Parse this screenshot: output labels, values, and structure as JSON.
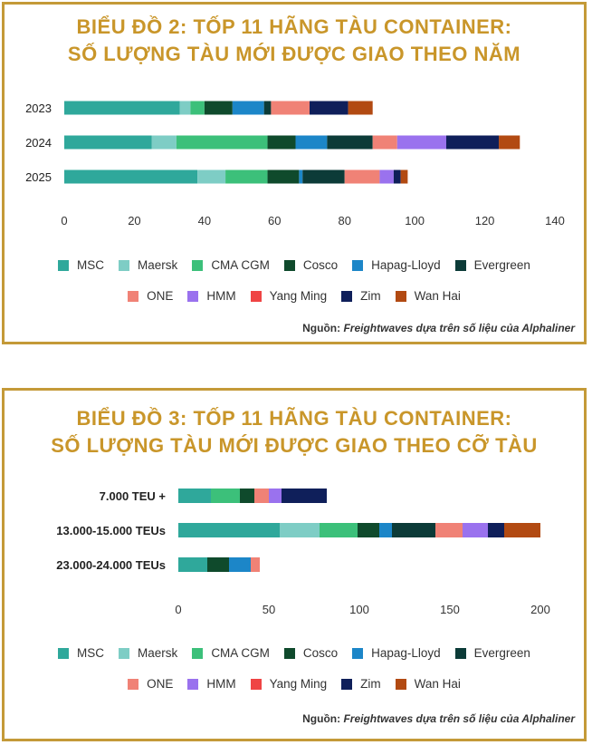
{
  "charts": [
    {
      "title_line1": "BIỂU ĐỒ 2: TỐP 11 HÃNG TÀU CONTAINER:",
      "title_line2": "SỐ LƯỢNG TÀU MỚI ĐƯỢC GIAO THEO NĂM",
      "source_prefix": "Nguồn:",
      "source_text": "Freightwaves dựa trên số liệu của Alphaliner"
    },
    {
      "title_line1": "BIỂU ĐỒ 3: TỐP 11 HÃNG TÀU CONTAINER:",
      "title_line2": "SỐ LƯỢNG TÀU MỚI ĐƯỢC GIAO THEO CỠ TÀU",
      "source_prefix": "Nguồn:",
      "source_text": "Freightwaves dựa trên số liệu của Alphaliner"
    }
  ],
  "colors": {
    "MSC": "#2fa89b",
    "Maersk": "#7ecdc5",
    "CMA CGM": "#3cc07a",
    "Cosco": "#0f4a2c",
    "Hapag-Lloyd": "#1c86c8",
    "Evergreen": "#0c3b38",
    "ONE": "#f08276",
    "HMM": "#9a72ee",
    "Yang Ming": "#ef4444",
    "Zim": "#0f1f5a",
    "Wan Hai": "#b24a12",
    "frame": "#c49a38",
    "title": "#c9962a"
  },
  "chart_data": [
    {
      "type": "bar",
      "orientation": "horizontal",
      "stacked": true,
      "title": "BIỂU ĐỒ 2: TỐP 11 HÃNG TÀU CONTAINER: SỐ LƯỢNG TÀU MỚI ĐƯỢC GIAO THEO NĂM",
      "categories": [
        "2023",
        "2024",
        "2025"
      ],
      "xlim": [
        0,
        140
      ],
      "xticks": [
        "0",
        "20",
        "40",
        "60",
        "80",
        "100",
        "120",
        "140"
      ],
      "legend_row1": [
        "MSC",
        "Maersk",
        "CMA CGM",
        "Cosco",
        "Hapag-Lloyd",
        "Evergreen"
      ],
      "legend_row2": [
        "ONE",
        "HMM",
        "Yang Ming",
        "Zim",
        "Wan Hai"
      ],
      "series": [
        {
          "name": "MSC",
          "values": [
            33,
            25,
            38
          ]
        },
        {
          "name": "Maersk",
          "values": [
            3,
            7,
            8
          ]
        },
        {
          "name": "CMA CGM",
          "values": [
            4,
            26,
            12
          ]
        },
        {
          "name": "Cosco",
          "values": [
            8,
            8,
            9
          ]
        },
        {
          "name": "Hapag-Lloyd",
          "values": [
            9,
            9,
            1
          ]
        },
        {
          "name": "Evergreen",
          "values": [
            2,
            13,
            12
          ]
        },
        {
          "name": "ONE",
          "values": [
            11,
            7,
            10
          ]
        },
        {
          "name": "HMM",
          "values": [
            0,
            14,
            4
          ]
        },
        {
          "name": "Yang Ming",
          "values": [
            0,
            0,
            0
          ]
        },
        {
          "name": "Zim",
          "values": [
            11,
            15,
            2
          ]
        },
        {
          "name": "Wan Hai",
          "values": [
            7,
            6,
            2
          ]
        }
      ]
    },
    {
      "type": "bar",
      "orientation": "horizontal",
      "stacked": true,
      "title": "BIỂU ĐỒ 3: TỐP 11 HÃNG TÀU CONTAINER: SỐ LƯỢNG TÀU MỚI ĐƯỢC GIAO THEO CỠ TÀU",
      "categories": [
        "7.000 TEU +",
        "13.000-15.000 TEUs",
        "23.000-24.000 TEUs"
      ],
      "xlim": [
        0,
        200
      ],
      "xticks": [
        "0",
        "50",
        "100",
        "150",
        "200"
      ],
      "legend_row1": [
        "MSC",
        "Maersk",
        "CMA CGM",
        "Cosco",
        "Hapag-Lloyd",
        "Evergreen"
      ],
      "legend_row2": [
        "ONE",
        "HMM",
        "Yang Ming",
        "Zim",
        "Wan Hai"
      ],
      "series": [
        {
          "name": "MSC",
          "values": [
            18,
            56,
            16
          ]
        },
        {
          "name": "Maersk",
          "values": [
            0,
            22,
            0
          ]
        },
        {
          "name": "CMA CGM",
          "values": [
            16,
            21,
            0
          ]
        },
        {
          "name": "Cosco",
          "values": [
            8,
            12,
            12
          ]
        },
        {
          "name": "Hapag-Lloyd",
          "values": [
            0,
            7,
            12
          ]
        },
        {
          "name": "Evergreen",
          "values": [
            0,
            24,
            0
          ]
        },
        {
          "name": "ONE",
          "values": [
            8,
            15,
            5
          ]
        },
        {
          "name": "HMM",
          "values": [
            7,
            14,
            0
          ]
        },
        {
          "name": "Yang Ming",
          "values": [
            0,
            0,
            0
          ]
        },
        {
          "name": "Zim",
          "values": [
            25,
            9,
            0
          ]
        },
        {
          "name": "Wan Hai",
          "values": [
            0,
            20,
            0
          ]
        }
      ]
    }
  ]
}
